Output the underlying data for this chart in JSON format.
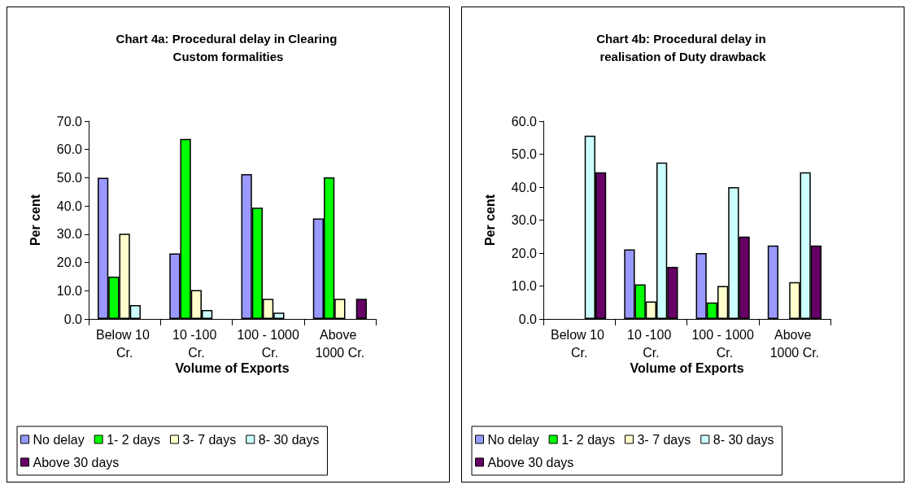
{
  "chart_data": [
    {
      "type": "bar",
      "title": "Chart 4a: Procedural delay in Clearing Custom formalities",
      "xlabel": "Volume of Exports",
      "ylabel": "Per cent",
      "categories": [
        "Below 10 Cr.",
        "10 -100 Cr.",
        "100 - 1000 Cr.",
        "Above 1000 Cr."
      ],
      "series": [
        {
          "name": "No delay",
          "color": "#9999ff",
          "values": [
            50.0,
            23.2,
            51.3,
            35.6
          ]
        },
        {
          "name": "1- 2 days",
          "color": "#00ff00",
          "values": [
            15.0,
            63.7,
            39.4,
            50.1
          ]
        },
        {
          "name": "3- 7 days",
          "color": "#ffffcc",
          "values": [
            30.2,
            10.2,
            7.1,
            7.1
          ]
        },
        {
          "name": "8- 30 days",
          "color": "#ccffff",
          "values": [
            4.9,
            3.2,
            2.2,
            null
          ]
        },
        {
          "name": "Above 30 days",
          "color": "#660066",
          "values": [
            null,
            null,
            null,
            7.1
          ]
        }
      ],
      "ylim": [
        0,
        70
      ],
      "yticks": [
        {
          "value": 0,
          "label": "0.0"
        },
        {
          "value": 10,
          "label": "10.0"
        },
        {
          "value": 20,
          "label": "20.0"
        },
        {
          "value": 30,
          "label": "30.0"
        },
        {
          "value": 40,
          "label": "40.0"
        },
        {
          "value": 50,
          "label": "50.0"
        },
        {
          "value": 60,
          "label": "60.0"
        },
        {
          "value": 70,
          "label": "70.0"
        }
      ],
      "grid": false,
      "legend": "bottom"
    },
    {
      "type": "bar",
      "title": "Chart 4b: Procedural delay in realisation of Duty drawback",
      "xlabel": "Volume of Exports",
      "ylabel": "Per cent",
      "categories": [
        "Below 10 Cr.",
        "10 -100 Cr.",
        "100 - 1000 Cr.",
        "Above 1000 Cr."
      ],
      "series": [
        {
          "name": "No delay",
          "color": "#9999ff",
          "values": [
            null,
            21.1,
            20.0,
            22.3
          ]
        },
        {
          "name": "1- 2 days",
          "color": "#00ff00",
          "values": [
            null,
            10.5,
            5.0,
            null
          ]
        },
        {
          "name": "3- 7 days",
          "color": "#ffffcc",
          "values": [
            null,
            5.3,
            10.0,
            11.2
          ]
        },
        {
          "name": "8- 30 days",
          "color": "#ccffff",
          "values": [
            55.6,
            47.5,
            40.0,
            44.5
          ]
        },
        {
          "name": "Above 30 days",
          "color": "#660066",
          "values": [
            44.5,
            15.8,
            25.0,
            22.3
          ]
        }
      ],
      "ylim": [
        0,
        60
      ],
      "yticks": [
        {
          "value": 0,
          "label": "0.0"
        },
        {
          "value": 10,
          "label": "10.0"
        },
        {
          "value": 20,
          "label": "20.0"
        },
        {
          "value": 30,
          "label": "30.0"
        },
        {
          "value": 40,
          "label": "40.0"
        },
        {
          "value": 50,
          "label": "50.0"
        },
        {
          "value": 60,
          "label": "60.0"
        }
      ],
      "grid": false,
      "legend": "bottom"
    }
  ]
}
